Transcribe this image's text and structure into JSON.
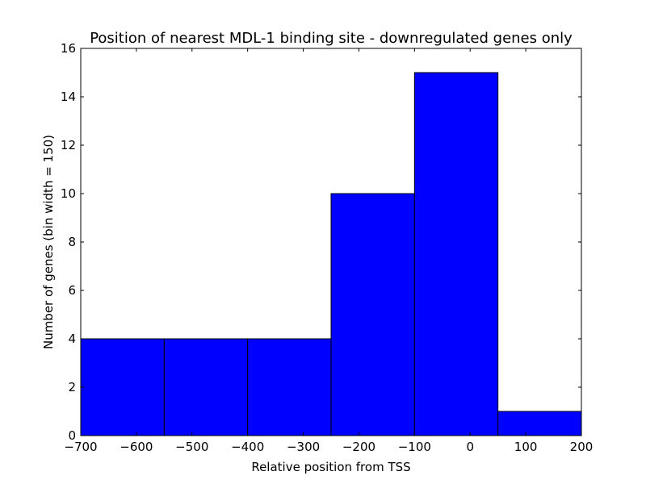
{
  "chart_data": {
    "type": "bar",
    "title": "Position of nearest MDL-1 binding site - downregulated genes only",
    "xlabel": "Relative position from TSS",
    "ylabel": "Number of genes (bin width = 150)",
    "xlim": [
      -700,
      200
    ],
    "ylim": [
      0,
      16
    ],
    "x_ticks": [
      -700,
      -600,
      -500,
      -400,
      -300,
      -200,
      -100,
      0,
      100,
      200
    ],
    "x_tick_labels": [
      "−700",
      "−600",
      "−500",
      "−400",
      "−300",
      "−200",
      "−100",
      "0",
      "100",
      "200"
    ],
    "y_ticks": [
      0,
      2,
      4,
      6,
      8,
      10,
      12,
      14,
      16
    ],
    "y_tick_labels": [
      "0",
      "2",
      "4",
      "6",
      "8",
      "10",
      "12",
      "14",
      "16"
    ],
    "bin_width": 150,
    "bins": [
      {
        "start": -700,
        "end": -550,
        "count": 4
      },
      {
        "start": -550,
        "end": -400,
        "count": 4
      },
      {
        "start": -400,
        "end": -250,
        "count": 4
      },
      {
        "start": -250,
        "end": -100,
        "count": 10
      },
      {
        "start": -100,
        "end": 50,
        "count": 15
      },
      {
        "start": 50,
        "end": 200,
        "count": 1
      }
    ],
    "bar_color": "#0000ff",
    "edge_color": "#000000",
    "grid": false,
    "legend": "none"
  }
}
